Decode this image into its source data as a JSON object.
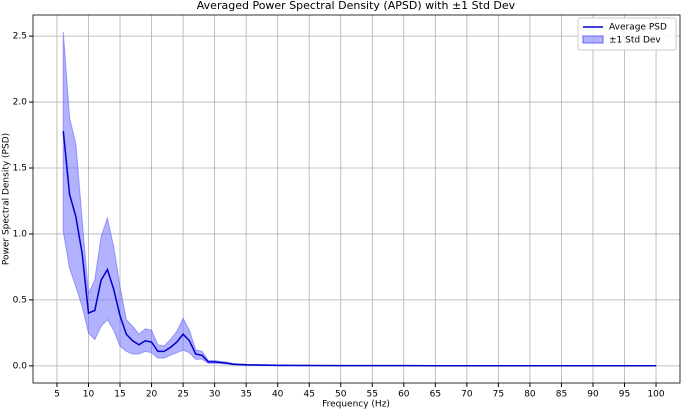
{
  "chart_data": {
    "type": "line-band",
    "title": "Averaged Power Spectral Density (APSD) with ±1 Std Dev",
    "xlabel": "Frequency (Hz)",
    "ylabel": "Power Spectral Density (PSD)",
    "x": [
      6,
      7,
      8,
      9,
      10,
      11,
      12,
      13,
      14,
      15,
      16,
      17,
      18,
      19,
      20,
      21,
      22,
      23,
      24,
      25,
      26,
      27,
      28,
      29,
      30,
      31,
      32,
      33,
      34,
      35,
      40,
      45,
      50,
      55,
      60,
      65,
      70,
      75,
      80,
      85,
      90,
      95,
      100
    ],
    "series": [
      {
        "name": "Average PSD",
        "color": "#0000cc",
        "values": [
          1.78,
          1.3,
          1.13,
          0.85,
          0.4,
          0.42,
          0.65,
          0.73,
          0.58,
          0.38,
          0.24,
          0.19,
          0.16,
          0.19,
          0.18,
          0.11,
          0.11,
          0.14,
          0.18,
          0.24,
          0.19,
          0.09,
          0.08,
          0.03,
          0.03,
          0.025,
          0.02,
          0.012,
          0.01,
          0.008,
          0.004,
          0.003,
          0.002,
          0.002,
          0.002,
          0.001,
          0.001,
          0.001,
          0.001,
          0.001,
          0.001,
          0.001,
          0.001
        ]
      },
      {
        "name": "±1 Std Dev",
        "color": "#6666ff",
        "upper": [
          2.53,
          1.88,
          1.68,
          1.1,
          0.55,
          0.65,
          0.98,
          1.12,
          0.9,
          0.6,
          0.35,
          0.3,
          0.24,
          0.28,
          0.27,
          0.16,
          0.15,
          0.2,
          0.26,
          0.36,
          0.27,
          0.12,
          0.11,
          0.04,
          0.04,
          0.033,
          0.027,
          0.017,
          0.014,
          0.011,
          0.006,
          0.005,
          0.004,
          0.004,
          0.004,
          0.003,
          0.003,
          0.003,
          0.003,
          0.003,
          0.003,
          0.003,
          0.003
        ],
        "lower": [
          1.02,
          0.74,
          0.6,
          0.45,
          0.25,
          0.2,
          0.3,
          0.35,
          0.27,
          0.15,
          0.11,
          0.09,
          0.09,
          0.11,
          0.1,
          0.06,
          0.06,
          0.08,
          0.1,
          0.12,
          0.1,
          0.05,
          0.05,
          0.02,
          0.02,
          0.017,
          0.013,
          0.007,
          0.006,
          0.005,
          0.002,
          0.0015,
          0.001,
          0.001,
          0.001,
          0.0005,
          0.0005,
          0.0005,
          0.0005,
          0.0005,
          0.0005,
          0.0005,
          0.0005
        ]
      }
    ],
    "xlim": [
      1.2,
      103.8
    ],
    "ylim": [
      -0.13,
      2.66
    ],
    "xticks": [
      5,
      10,
      15,
      20,
      25,
      30,
      35,
      40,
      45,
      50,
      55,
      60,
      65,
      70,
      75,
      80,
      85,
      90,
      95,
      100
    ],
    "yticks": [
      {
        "value": 0,
        "label": "0.0"
      },
      0.5,
      {
        "value": 1,
        "label": "1.0"
      },
      1.5,
      {
        "value": 2,
        "label": "2.0"
      },
      2.5
    ],
    "grid": true,
    "legend": "upper-right"
  }
}
